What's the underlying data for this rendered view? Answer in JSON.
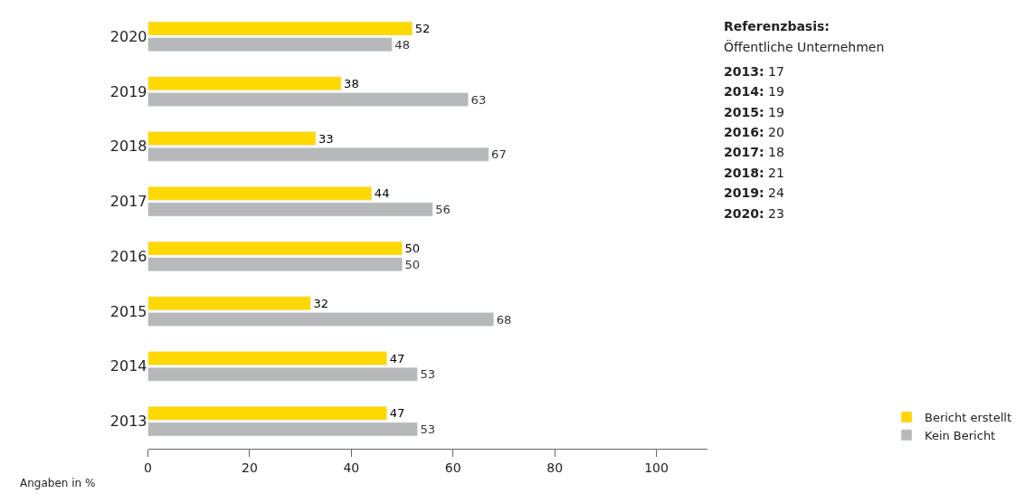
{
  "chart_data": {
    "type": "bar",
    "orientation": "horizontal",
    "categories": [
      "2020",
      "2019",
      "2018",
      "2017",
      "2016",
      "2015",
      "2014",
      "2013"
    ],
    "series": [
      {
        "name": "Bericht erstellt",
        "color": "#ffd800",
        "values": [
          52,
          38,
          33,
          44,
          50,
          32,
          47,
          47
        ]
      },
      {
        "name": "Kein Bericht",
        "color": "#b6b8b9",
        "values": [
          48,
          63,
          67,
          56,
          50,
          68,
          53,
          53
        ]
      }
    ],
    "xlim": [
      0,
      110
    ],
    "xticks": [
      0,
      20,
      40,
      60,
      80,
      100
    ],
    "data_labels": true,
    "legend": "bottom right",
    "annotations": [
      "Angaben in %",
      "Referenzbasis:",
      "Öffentliche Unternehmen",
      "2013: 17",
      "2014: 19",
      "2015: 19",
      "2016: 20",
      "2017: 18",
      "2018: 21",
      "2019: 24",
      "2020: 23"
    ]
  }
}
